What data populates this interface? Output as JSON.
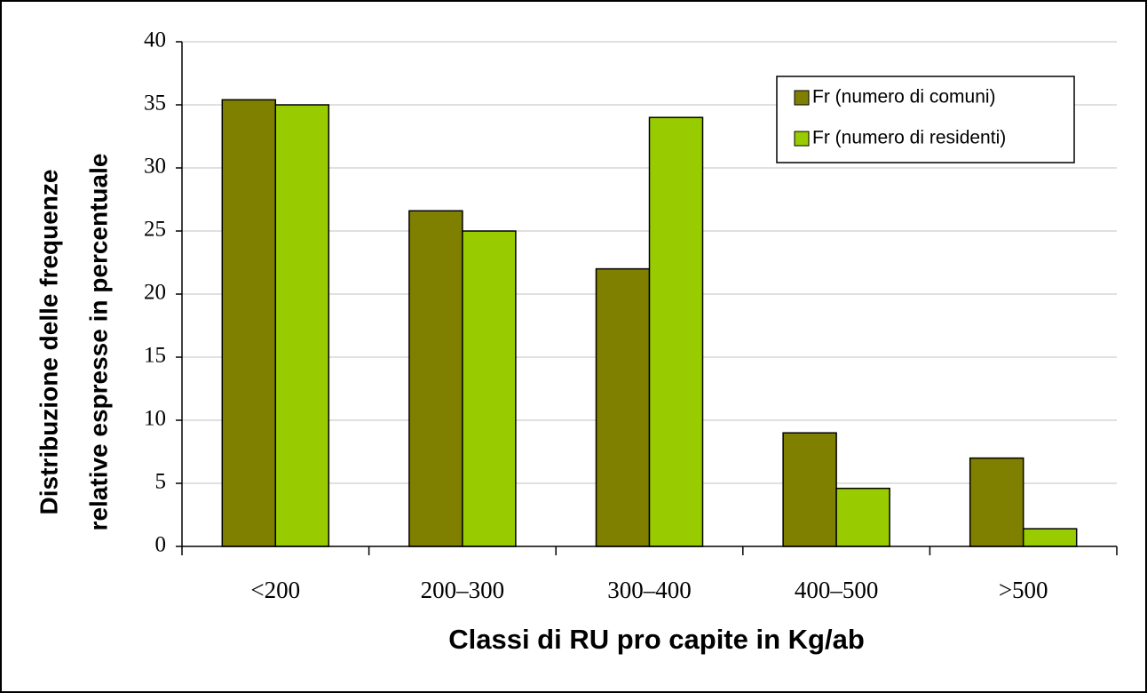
{
  "chart_data": {
    "type": "bar",
    "xlabel": "Classi di RU pro capite in Kg/ab",
    "ylabel": [
      "Distribuzione delle frequenze",
      "relative espresse in percentuale"
    ],
    "categories": [
      "<200",
      "200–300",
      "300–400",
      "400–500",
      ">500"
    ],
    "series": [
      {
        "name": "Fr (numero di comuni)",
        "color": "#808000",
        "values": [
          35.4,
          26.6,
          22.0,
          9.0,
          7.0
        ]
      },
      {
        "name": "Fr (numero di residenti)",
        "color": "#99cc00",
        "values": [
          35.0,
          25.0,
          34.0,
          4.6,
          1.4
        ]
      }
    ],
    "ylim": [
      0,
      40
    ],
    "yticks": [
      0,
      5,
      10,
      15,
      20,
      25,
      30,
      35,
      40
    ],
    "grid": true,
    "legend": "upper right"
  }
}
